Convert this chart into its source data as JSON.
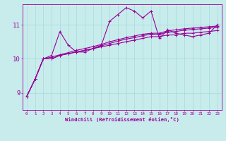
{
  "xlabel": "Windchill (Refroidissement éolien,°C)",
  "bg_color": "#c8ecec",
  "line_color": "#990099",
  "grid_color": "#aadddd",
  "x_ticks": [
    0,
    1,
    2,
    3,
    4,
    5,
    6,
    7,
    8,
    9,
    10,
    11,
    12,
    13,
    14,
    15,
    16,
    17,
    18,
    19,
    20,
    21,
    22,
    23
  ],
  "x_tick_labels": [
    "0",
    "1",
    "2",
    "3",
    "4",
    "5",
    "6",
    "7",
    "8",
    "9",
    "10",
    "11",
    "12",
    "13",
    "14",
    "15",
    "16",
    "17",
    "18",
    "19",
    "20",
    "21",
    "22",
    "23"
  ],
  "y_ticks": [
    9,
    10,
    11
  ],
  "ylim": [
    8.5,
    11.6
  ],
  "xlim": [
    -0.5,
    23.5
  ],
  "series": [
    [
      8.9,
      9.4,
      10.0,
      10.1,
      10.8,
      10.4,
      10.2,
      10.2,
      10.3,
      10.4,
      11.1,
      11.3,
      11.5,
      11.4,
      11.2,
      11.4,
      10.6,
      10.85,
      10.75,
      10.7,
      10.65,
      10.7,
      10.75,
      11.0
    ],
    [
      8.9,
      9.4,
      10.0,
      10.0,
      10.1,
      10.15,
      10.2,
      10.25,
      10.3,
      10.35,
      10.4,
      10.45,
      10.5,
      10.55,
      10.6,
      10.65,
      10.65,
      10.7,
      10.7,
      10.75,
      10.75,
      10.78,
      10.8,
      10.83
    ],
    [
      8.9,
      9.4,
      10.0,
      10.0,
      10.1,
      10.15,
      10.2,
      10.25,
      10.3,
      10.38,
      10.45,
      10.52,
      10.58,
      10.62,
      10.68,
      10.72,
      10.72,
      10.78,
      10.8,
      10.84,
      10.86,
      10.88,
      10.9,
      10.92
    ],
    [
      8.9,
      9.4,
      10.0,
      10.05,
      10.12,
      10.18,
      10.25,
      10.3,
      10.36,
      10.42,
      10.5,
      10.56,
      10.62,
      10.67,
      10.72,
      10.75,
      10.75,
      10.82,
      10.85,
      10.88,
      10.9,
      10.92,
      10.94,
      10.96
    ]
  ]
}
